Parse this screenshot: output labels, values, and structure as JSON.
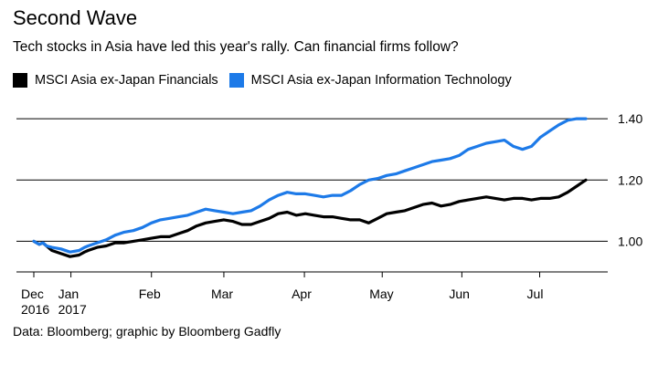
{
  "chart_data": {
    "type": "line",
    "title": "Second Wave",
    "subtitle": "Tech stocks in Asia have led this year's rally. Can financial firms follow?",
    "source": "Data: Bloomberg; graphic by Bloomberg Gadfly",
    "xlabel": "",
    "ylabel": "",
    "ylim": [
      0.9,
      1.46
    ],
    "grid": true,
    "legend_position": "top-left",
    "y_ticks": [
      {
        "value": 1.0,
        "label": "1.00"
      },
      {
        "value": 1.2,
        "label": "1.20"
      },
      {
        "value": 1.4,
        "label": "1.40"
      }
    ],
    "x_range": [
      0,
      30.7
    ],
    "x_ticks": [
      {
        "x": 0,
        "label": "Dec",
        "label2": "2016"
      },
      {
        "x": 2.05,
        "label": "Jan",
        "label2": "2017"
      },
      {
        "x": 6.5,
        "label": "Feb",
        "label2": ""
      },
      {
        "x": 10.5,
        "label": "Mar",
        "label2": ""
      },
      {
        "x": 14.95,
        "label": "Apr",
        "label2": ""
      },
      {
        "x": 19.25,
        "label": "May",
        "label2": ""
      },
      {
        "x": 23.65,
        "label": "Jun",
        "label2": ""
      },
      {
        "x": 27.95,
        "label": "Jul",
        "label2": ""
      }
    ],
    "series": [
      {
        "name": "MSCI Asia ex-Japan Financials",
        "color": "#000000",
        "x": [
          0,
          0.3,
          0.5,
          0.7,
          1,
          1.5,
          2,
          2.5,
          2.8,
          3,
          3.5,
          4,
          4.5,
          5,
          5.5,
          6,
          6.5,
          7,
          7.5,
          8,
          8.5,
          9,
          9.5,
          10,
          10.5,
          11,
          11.5,
          12,
          12.5,
          13,
          13.5,
          14,
          14.5,
          15,
          15.5,
          16,
          16.5,
          17,
          17.5,
          18,
          18.5,
          19,
          19.5,
          20,
          20.5,
          21,
          21.5,
          22,
          22.5,
          23,
          23.5,
          24,
          24.5,
          25,
          25.5,
          26,
          26.5,
          27,
          27.5,
          28,
          28.5,
          29,
          29.5,
          30,
          30.5
        ],
        "values": [
          1.0,
          0.99,
          0.995,
          0.985,
          0.97,
          0.96,
          0.95,
          0.955,
          0.965,
          0.97,
          0.98,
          0.985,
          0.995,
          0.995,
          1.0,
          1.005,
          1.01,
          1.015,
          1.015,
          1.025,
          1.035,
          1.05,
          1.06,
          1.065,
          1.07,
          1.065,
          1.055,
          1.055,
          1.065,
          1.075,
          1.09,
          1.095,
          1.085,
          1.09,
          1.085,
          1.08,
          1.08,
          1.075,
          1.07,
          1.07,
          1.06,
          1.075,
          1.09,
          1.095,
          1.1,
          1.11,
          1.12,
          1.125,
          1.115,
          1.12,
          1.13,
          1.135,
          1.14,
          1.145,
          1.14,
          1.135,
          1.14,
          1.14,
          1.135,
          1.14,
          1.14,
          1.145,
          1.16,
          1.18,
          1.2
        ]
      },
      {
        "name": "MSCI Asia ex-Japan Information Technology",
        "color": "#1d7ae8",
        "x": [
          0,
          0.3,
          0.5,
          0.7,
          1,
          1.5,
          2,
          2.5,
          2.8,
          3,
          3.5,
          4,
          4.5,
          5,
          5.5,
          6,
          6.5,
          7,
          7.5,
          8,
          8.5,
          9,
          9.5,
          10,
          10.5,
          11,
          11.5,
          12,
          12.5,
          13,
          13.5,
          14,
          14.5,
          15,
          15.5,
          16,
          16.5,
          17,
          17.5,
          18,
          18.5,
          19,
          19.5,
          20,
          20.5,
          21,
          21.5,
          22,
          22.5,
          23,
          23.5,
          24,
          24.5,
          25,
          25.5,
          26,
          26.5,
          27,
          27.5,
          28,
          28.5,
          29,
          29.5,
          30,
          30.5
        ],
        "values": [
          1.0,
          0.99,
          0.995,
          0.985,
          0.98,
          0.975,
          0.965,
          0.97,
          0.98,
          0.985,
          0.995,
          1.005,
          1.02,
          1.03,
          1.035,
          1.045,
          1.06,
          1.07,
          1.075,
          1.08,
          1.085,
          1.095,
          1.105,
          1.1,
          1.095,
          1.09,
          1.095,
          1.1,
          1.115,
          1.135,
          1.15,
          1.16,
          1.155,
          1.155,
          1.15,
          1.145,
          1.15,
          1.15,
          1.165,
          1.185,
          1.2,
          1.205,
          1.215,
          1.22,
          1.23,
          1.24,
          1.25,
          1.26,
          1.265,
          1.27,
          1.28,
          1.3,
          1.31,
          1.32,
          1.325,
          1.33,
          1.31,
          1.3,
          1.31,
          1.34,
          1.36,
          1.38,
          1.395,
          1.4,
          1.4
        ]
      }
    ]
  }
}
